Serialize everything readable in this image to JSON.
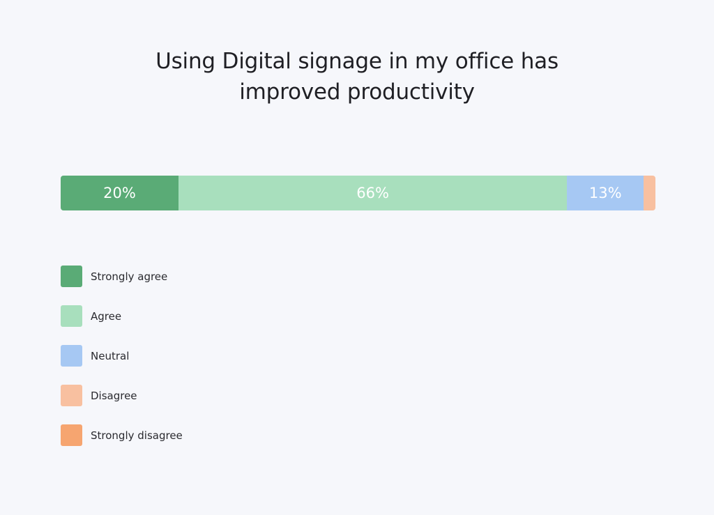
{
  "chart_data": {
    "type": "bar",
    "orientation": "horizontal",
    "stacked": true,
    "title_lines": [
      "Using Digital signage in my office has",
      "improved productivity"
    ],
    "categories": [
      "Strongly agree",
      "Agree",
      "Neutral",
      "Disagree",
      "Strongly disagree"
    ],
    "values": [
      20,
      66,
      13,
      2,
      0
    ],
    "value_labels": [
      "20%",
      "66%",
      "13%",
      "",
      ""
    ],
    "colors": [
      "#5aab76",
      "#a8dfbd",
      "#a6c8f3",
      "#f8c0a0",
      "#f6a570"
    ],
    "grid": false,
    "legend_placement": "bottom-left"
  }
}
